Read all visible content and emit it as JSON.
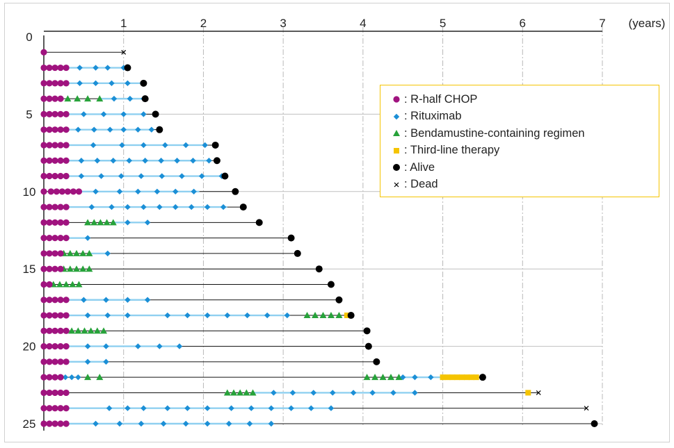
{
  "chart_data": {
    "type": "timeline",
    "x_unit_label": "(years)",
    "x_ticks": [
      1,
      2,
      3,
      4,
      5,
      6,
      7
    ],
    "y_ticks": [
      0,
      5,
      10,
      15,
      20,
      25
    ],
    "xlim": [
      0,
      7
    ],
    "ylim": [
      0,
      25
    ],
    "legend": [
      {
        "key": "rchop",
        "label": ": R-half CHOP",
        "marker": "circle",
        "color": "#a0137f"
      },
      {
        "key": "ritux",
        "label": ": Rituximab",
        "marker": "diamond",
        "color": "#1b8fd6"
      },
      {
        "key": "benda",
        "label": ": Bendamustine-containing regimen",
        "marker": "triangle",
        "color": "#27a23a"
      },
      {
        "key": "third",
        "label": ": Third-line therapy",
        "marker": "square",
        "color": "#f5c400"
      },
      {
        "key": "alive",
        "label": ": Alive",
        "marker": "dot",
        "color": "#000000"
      },
      {
        "key": "dead",
        "label": ": Dead",
        "marker": "x",
        "color": "#000000"
      }
    ],
    "patients": [
      {
        "id": 1,
        "end": 1.0,
        "status": "dead",
        "rchop": [
          0.0
        ],
        "ritux": [],
        "benda": [],
        "third": [],
        "blue": []
      },
      {
        "id": 2,
        "end": 1.05,
        "status": "alive",
        "rchop": [
          0.0,
          0.07,
          0.14,
          0.21,
          0.28
        ],
        "ritux": [
          0.45,
          0.65,
          0.8,
          1.0
        ],
        "benda": [],
        "third": [],
        "blue": [
          [
            0.28,
            1.05
          ]
        ]
      },
      {
        "id": 3,
        "end": 1.25,
        "status": "alive",
        "rchop": [
          0.0,
          0.07,
          0.14,
          0.21,
          0.28
        ],
        "ritux": [
          0.45,
          0.65,
          0.85,
          1.05,
          1.25
        ],
        "benda": [],
        "third": [],
        "blue": [
          [
            0.28,
            1.25
          ]
        ]
      },
      {
        "id": 4,
        "end": 1.27,
        "status": "alive",
        "rchop": [
          0.0,
          0.07,
          0.14,
          0.21
        ],
        "ritux": [
          0.88,
          1.08,
          1.25
        ],
        "benda": [
          0.3,
          0.42,
          0.55,
          0.7
        ],
        "third": [],
        "blue": [
          [
            0.7,
            1.27
          ]
        ]
      },
      {
        "id": 5,
        "end": 1.4,
        "status": "alive",
        "rchop": [
          0.0,
          0.07,
          0.14,
          0.21,
          0.28
        ],
        "ritux": [
          0.5,
          0.75,
          1.0,
          1.25
        ],
        "benda": [],
        "third": [],
        "blue": [
          [
            0.28,
            1.25
          ]
        ]
      },
      {
        "id": 6,
        "end": 1.45,
        "status": "alive",
        "rchop": [
          0.0,
          0.07,
          0.14,
          0.21,
          0.28
        ],
        "ritux": [
          0.43,
          0.63,
          0.83,
          1.0,
          1.18,
          1.35
        ],
        "benda": [],
        "third": [],
        "blue": [
          [
            0.28,
            1.35
          ]
        ]
      },
      {
        "id": 7,
        "end": 2.15,
        "status": "alive",
        "rchop": [
          0.0,
          0.07,
          0.14,
          0.21,
          0.28
        ],
        "ritux": [
          0.62,
          0.98,
          1.25,
          1.52,
          1.78,
          2.02
        ],
        "benda": [],
        "third": [],
        "blue": [
          [
            0.28,
            2.05
          ]
        ]
      },
      {
        "id": 8,
        "end": 2.17,
        "status": "alive",
        "rchop": [
          0.0,
          0.07,
          0.14,
          0.21,
          0.28
        ],
        "ritux": [
          0.47,
          0.67,
          0.87,
          1.07,
          1.27,
          1.47,
          1.67,
          1.87,
          2.07
        ],
        "benda": [],
        "third": [],
        "blue": [
          [
            0.28,
            2.07
          ]
        ]
      },
      {
        "id": 9,
        "end": 2.27,
        "status": "alive",
        "rchop": [
          0.0,
          0.07,
          0.14,
          0.21,
          0.28
        ],
        "ritux": [
          0.47,
          0.72,
          0.97,
          1.22,
          1.48,
          1.73,
          1.98,
          2.23
        ],
        "benda": [],
        "third": [],
        "blue": [
          [
            0.28,
            2.27
          ]
        ]
      },
      {
        "id": 10,
        "end": 2.4,
        "status": "alive",
        "rchop": [
          0.0,
          0.09,
          0.16,
          0.23,
          0.3,
          0.37,
          0.44
        ],
        "ritux": [
          0.65,
          0.95,
          1.18,
          1.42,
          1.65,
          1.88
        ],
        "benda": [],
        "third": [],
        "blue": [
          [
            0.44,
            1.95
          ]
        ]
      },
      {
        "id": 11,
        "end": 2.5,
        "status": "alive",
        "rchop": [
          0.0,
          0.07,
          0.14,
          0.21,
          0.28
        ],
        "ritux": [
          0.6,
          0.85,
          1.05,
          1.25,
          1.45,
          1.65,
          1.85,
          2.05,
          2.25
        ],
        "benda": [],
        "third": [],
        "blue": [
          [
            0.28,
            2.3
          ]
        ]
      },
      {
        "id": 12,
        "end": 2.7,
        "status": "alive",
        "rchop": [
          0.0,
          0.07,
          0.14,
          0.21,
          0.28
        ],
        "ritux": [
          1.05,
          1.3
        ],
        "benda": [
          0.55,
          0.63,
          0.71,
          0.79,
          0.87
        ],
        "third": [],
        "blue": [
          [
            0.87,
            1.3
          ]
        ]
      },
      {
        "id": 13,
        "end": 3.1,
        "status": "alive",
        "rchop": [
          0.0,
          0.07,
          0.14,
          0.21,
          0.28
        ],
        "ritux": [
          0.55
        ],
        "benda": [],
        "third": [],
        "blue": [
          [
            0.28,
            0.55
          ]
        ]
      },
      {
        "id": 14,
        "end": 3.18,
        "status": "alive",
        "rchop": [
          0.0,
          0.07,
          0.14,
          0.21
        ],
        "ritux": [
          0.8
        ],
        "benda": [
          0.25,
          0.33,
          0.41,
          0.49,
          0.57
        ],
        "third": [],
        "blue": [
          [
            0.57,
            0.8
          ]
        ]
      },
      {
        "id": 15,
        "end": 3.45,
        "status": "alive",
        "rchop": [
          0.0,
          0.07,
          0.14,
          0.21
        ],
        "ritux": [],
        "benda": [
          0.25,
          0.33,
          0.41,
          0.49,
          0.57
        ],
        "third": [],
        "blue": []
      },
      {
        "id": 16,
        "end": 3.6,
        "status": "alive",
        "rchop": [
          0.0,
          0.07
        ],
        "ritux": [],
        "benda": [
          0.12,
          0.2,
          0.28,
          0.36,
          0.44
        ],
        "third": [],
        "blue": []
      },
      {
        "id": 17,
        "end": 3.7,
        "status": "alive",
        "rchop": [
          0.0,
          0.07,
          0.14,
          0.21,
          0.28
        ],
        "ritux": [
          0.5,
          0.78,
          1.05,
          1.3
        ],
        "benda": [],
        "third": [],
        "blue": [
          [
            0.28,
            1.3
          ]
        ]
      },
      {
        "id": 18,
        "end": 3.85,
        "status": "alive",
        "rchop": [
          0.0,
          0.07,
          0.14,
          0.21,
          0.28
        ],
        "ritux": [
          0.55,
          0.8,
          1.05,
          1.55,
          1.8,
          2.05,
          2.3,
          2.55,
          2.8,
          3.05
        ],
        "benda": [
          3.3,
          3.4,
          3.5,
          3.6,
          3.7
        ],
        "third": [
          3.8
        ],
        "blue": [
          [
            0.28,
            3.05
          ]
        ]
      },
      {
        "id": 19,
        "end": 4.05,
        "status": "alive",
        "rchop": [
          0.0,
          0.07,
          0.14,
          0.21,
          0.28
        ],
        "ritux": [],
        "benda": [
          0.35,
          0.43,
          0.51,
          0.59,
          0.67,
          0.75
        ],
        "third": [],
        "blue": []
      },
      {
        "id": 20,
        "end": 4.07,
        "status": "alive",
        "rchop": [
          0.0,
          0.07,
          0.14,
          0.21,
          0.28
        ],
        "ritux": [
          0.55,
          0.78,
          1.18,
          1.45,
          1.7
        ],
        "benda": [],
        "third": [],
        "blue": [
          [
            0.28,
            1.7
          ]
        ]
      },
      {
        "id": 21,
        "end": 4.17,
        "status": "alive",
        "rchop": [
          0.0,
          0.07,
          0.14,
          0.21,
          0.28
        ],
        "ritux": [
          0.55,
          0.78
        ],
        "benda": [],
        "third": [],
        "blue": [
          [
            0.28,
            0.78
          ]
        ]
      },
      {
        "id": 22,
        "end": 5.5,
        "status": "alive",
        "rchop": [
          0.0,
          0.07,
          0.14,
          0.21
        ],
        "ritux": [
          0.27,
          0.35,
          0.43,
          4.5,
          4.65,
          4.85
        ],
        "benda": [
          0.55,
          0.7,
          4.05,
          4.15,
          4.25,
          4.35,
          4.45
        ],
        "third": [
          5.0,
          5.06,
          5.12,
          5.18,
          5.24,
          5.3,
          5.36,
          5.42
        ],
        "blue": [
          [
            4.45,
            5.0
          ]
        ]
      },
      {
        "id": 23,
        "end": 6.2,
        "status": "dead",
        "rchop": [
          0.0,
          0.07,
          0.14,
          0.21,
          0.28
        ],
        "ritux": [
          2.88,
          3.12,
          3.38,
          3.62,
          3.88,
          4.12,
          4.38,
          4.65
        ],
        "benda": [
          2.3,
          2.38,
          2.46,
          2.54,
          2.62
        ],
        "third": [
          6.07
        ],
        "blue": [
          [
            2.62,
            4.65
          ]
        ]
      },
      {
        "id": 24,
        "end": 6.8,
        "status": "dead",
        "rchop": [
          0.0,
          0.07,
          0.14,
          0.21,
          0.28
        ],
        "ritux": [
          0.82,
          1.05,
          1.25,
          1.55,
          1.8,
          2.05,
          2.35,
          2.6,
          2.85,
          3.1,
          3.35,
          3.6
        ],
        "benda": [],
        "third": [],
        "blue": [
          [
            0.28,
            3.6
          ]
        ]
      },
      {
        "id": 25,
        "end": 6.9,
        "status": "alive",
        "rchop": [
          0.0,
          0.07,
          0.14,
          0.21,
          0.28
        ],
        "ritux": [
          0.65,
          0.95,
          1.22,
          1.5,
          1.78,
          2.05,
          2.32,
          2.58,
          2.85
        ],
        "benda": [],
        "third": [],
        "blue": [
          [
            0.28,
            2.85
          ]
        ]
      }
    ]
  }
}
